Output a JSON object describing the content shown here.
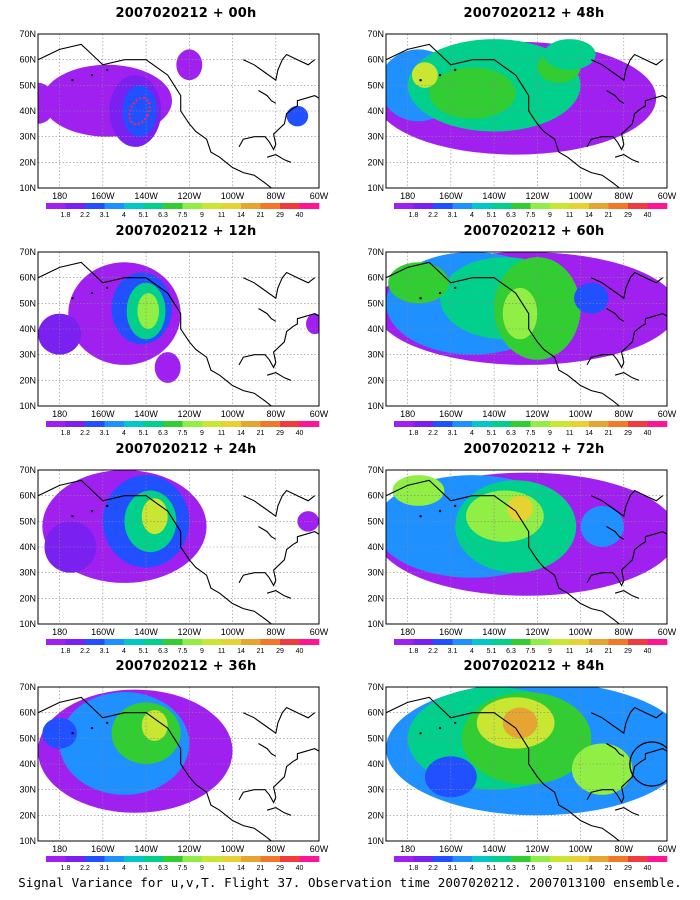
{
  "panels": [
    {
      "title": "2007020212 + 00h"
    },
    {
      "title": "2007020212 + 48h"
    },
    {
      "title": "2007020212 + 12h"
    },
    {
      "title": "2007020212 + 60h"
    },
    {
      "title": "2007020212 + 24h"
    },
    {
      "title": "2007020212 + 72h"
    },
    {
      "title": "2007020212 + 36h"
    },
    {
      "title": "2007020212 + 84h"
    }
  ],
  "axes": {
    "y_ticks": [
      "70N",
      "60N",
      "50N",
      "40N",
      "30N",
      "20N",
      "10N"
    ],
    "x_ticks": [
      "180",
      "160W",
      "140W",
      "120W",
      "100W",
      "80W",
      "60W"
    ]
  },
  "colorbar": {
    "labels": [
      "1.8",
      "2.2",
      "3.1",
      "4",
      "5.1",
      "6.3",
      "7.5",
      "9",
      "11",
      "14",
      "21",
      "29",
      "40"
    ],
    "colors": [
      "#a020f0",
      "#7a20f0",
      "#2050ff",
      "#1e90ff",
      "#00c8c8",
      "#00d08c",
      "#32cd32",
      "#90ee44",
      "#c8e632",
      "#e6d232",
      "#e6a532",
      "#f07828",
      "#f03c3c",
      "#ff1493"
    ]
  },
  "footer": {
    "text": "Signal Variance for u,v,T. Flight 37. Observation time 2007020212. 2007013100 ensemble."
  }
}
